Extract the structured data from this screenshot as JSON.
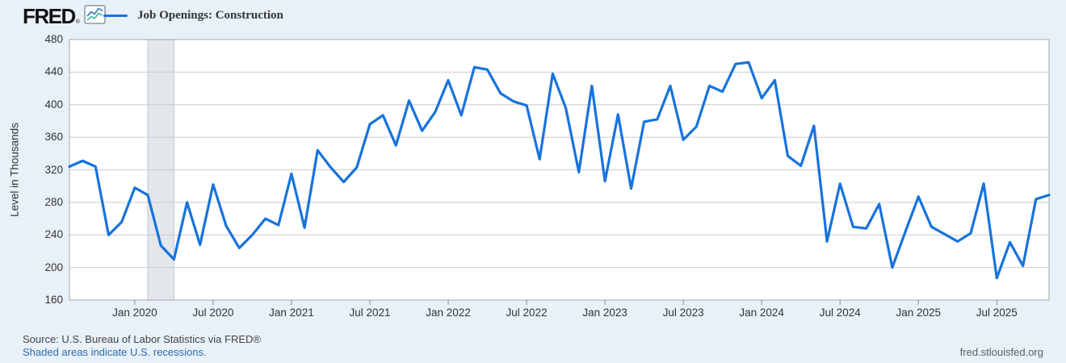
{
  "brand": {
    "logo_text": "FRED",
    "registered_mark": "®"
  },
  "legend": {
    "label": "Job Openings: Construction"
  },
  "y_axis": {
    "title": "Level in Thousands",
    "ticks": [
      480,
      440,
      400,
      360,
      320,
      280,
      240,
      200,
      160
    ]
  },
  "x_axis": {
    "tick_labels": [
      "Jan 2020",
      "Jul 2020",
      "Jan 2021",
      "Jul 2021",
      "Jan 2022",
      "Jul 2022",
      "Jan 2023",
      "Jul 2023",
      "Jan 2024",
      "Jul 2024",
      "Jan 2025",
      "Jul 2025"
    ],
    "tick_indices": [
      5,
      11,
      17,
      23,
      29,
      35,
      41,
      47,
      53,
      59,
      65,
      71
    ]
  },
  "footer": {
    "source": "Source: U.S. Bureau of Labor Statistics via FRED®",
    "recession_note": "Shaded areas indicate U.S. recessions.",
    "site_url": "fred.stlouisfed.org"
  },
  "colors": {
    "series": "#1773dd",
    "page_bg": "#e8f1f8",
    "plot_bg": "#ffffff",
    "grid": "#cccccc",
    "plot_border": "#a6a6a6",
    "tick_mark": "#8a8a8a",
    "recession_band": "#e2e7ec",
    "recession_band_edge": "#bfc6cd",
    "link": "#2c6cac",
    "icon_blue": "#4a7ebf",
    "icon_teal": "#44b8a8"
  },
  "chart_data": {
    "type": "line",
    "title": "Job Openings: Construction",
    "ylabel": "Level in Thousands",
    "ylim": [
      160,
      480
    ],
    "grid": "horizontal",
    "legend_position": "top-left",
    "recession_band": {
      "start": "2020-02",
      "end": "2020-04"
    },
    "x": [
      "2019-08",
      "2019-09",
      "2019-10",
      "2019-11",
      "2019-12",
      "2020-01",
      "2020-02",
      "2020-03",
      "2020-04",
      "2020-05",
      "2020-06",
      "2020-07",
      "2020-08",
      "2020-09",
      "2020-10",
      "2020-11",
      "2020-12",
      "2021-01",
      "2021-02",
      "2021-03",
      "2021-04",
      "2021-05",
      "2021-06",
      "2021-07",
      "2021-08",
      "2021-09",
      "2021-10",
      "2021-11",
      "2021-12",
      "2022-01",
      "2022-02",
      "2022-03",
      "2022-04",
      "2022-05",
      "2022-06",
      "2022-07",
      "2022-08",
      "2022-09",
      "2022-10",
      "2022-11",
      "2022-12",
      "2023-01",
      "2023-02",
      "2023-03",
      "2023-04",
      "2023-05",
      "2023-06",
      "2023-07",
      "2023-08",
      "2023-09",
      "2023-10",
      "2023-11",
      "2023-12",
      "2024-01",
      "2024-02",
      "2024-03",
      "2024-04",
      "2024-05",
      "2024-06",
      "2024-07",
      "2024-08",
      "2024-09",
      "2024-10",
      "2024-11",
      "2024-12",
      "2025-01",
      "2025-02",
      "2025-03",
      "2025-04",
      "2025-05",
      "2025-06",
      "2025-07",
      "2025-08",
      "2025-09",
      "2025-10",
      "2025-11"
    ],
    "series": [
      {
        "name": "Job Openings: Construction",
        "values": [
          324,
          331,
          324,
          240,
          256,
          298,
          289,
          227,
          210,
          280,
          228,
          302,
          251,
          224,
          240,
          260,
          252,
          315,
          249,
          344,
          323,
          305,
          323,
          376,
          387,
          350,
          405,
          368,
          391,
          430,
          387,
          446,
          443,
          414,
          404,
          399,
          333,
          438,
          396,
          317,
          423,
          306,
          388,
          297,
          379,
          382,
          423,
          357,
          373,
          423,
          416,
          450,
          452,
          408,
          430,
          337,
          325,
          374,
          232,
          303,
          250,
          248,
          278,
          200,
          244,
          287,
          250,
          241,
          232,
          242,
          303,
          187,
          231,
          202,
          284,
          289
        ]
      }
    ]
  }
}
